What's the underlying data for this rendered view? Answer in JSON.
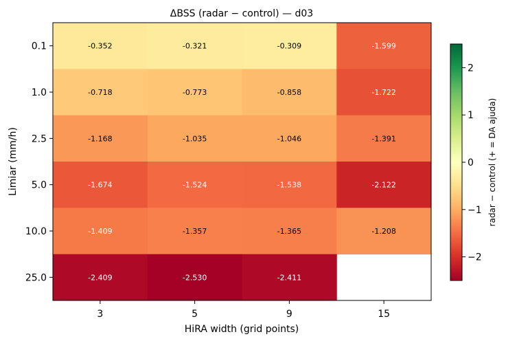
{
  "chart_data": {
    "type": "heatmap",
    "title": "ΔBSS  (radar − control)  —  d03",
    "xlabel": "HiRA width (grid points)",
    "ylabel": "Limiar (mm/h)",
    "x_categories": [
      "3",
      "5",
      "9",
      "15"
    ],
    "y_categories": [
      "0.1",
      "1.0",
      "2.5",
      "5.0",
      "10.0",
      "25.0"
    ],
    "values": [
      [
        -0.352,
        -0.321,
        -0.309,
        -1.599
      ],
      [
        -0.718,
        -0.773,
        -0.858,
        -1.722
      ],
      [
        -1.168,
        -1.035,
        -1.046,
        -1.391
      ],
      [
        -1.674,
        -1.524,
        -1.538,
        -2.122
      ],
      [
        -1.409,
        -1.357,
        -1.365,
        -1.208
      ],
      [
        -2.409,
        -2.53,
        -2.411,
        null
      ]
    ],
    "cell_labels": [
      [
        "-0.352",
        "-0.321",
        "-0.309",
        "-1.599"
      ],
      [
        "-0.718",
        "-0.773",
        "-0.858",
        "-1.722"
      ],
      [
        "-1.168",
        "-1.035",
        "-1.046",
        "-1.391"
      ],
      [
        "-1.674",
        "-1.524",
        "-1.538",
        "-2.122"
      ],
      [
        "-1.409",
        "-1.357",
        "-1.365",
        "-1.208"
      ],
      [
        "-2.409",
        "-2.530",
        "-2.411",
        ""
      ]
    ],
    "colorbar": {
      "label": "radar − control  (+ = DA ajuda)",
      "range": [
        -2.5,
        2.5
      ],
      "ticks": [
        -2,
        -1,
        0,
        1,
        2
      ],
      "tick_labels": [
        "−2",
        "−1",
        "0",
        "1",
        "2"
      ],
      "colormap": "RdYlGn"
    },
    "grid": false
  }
}
